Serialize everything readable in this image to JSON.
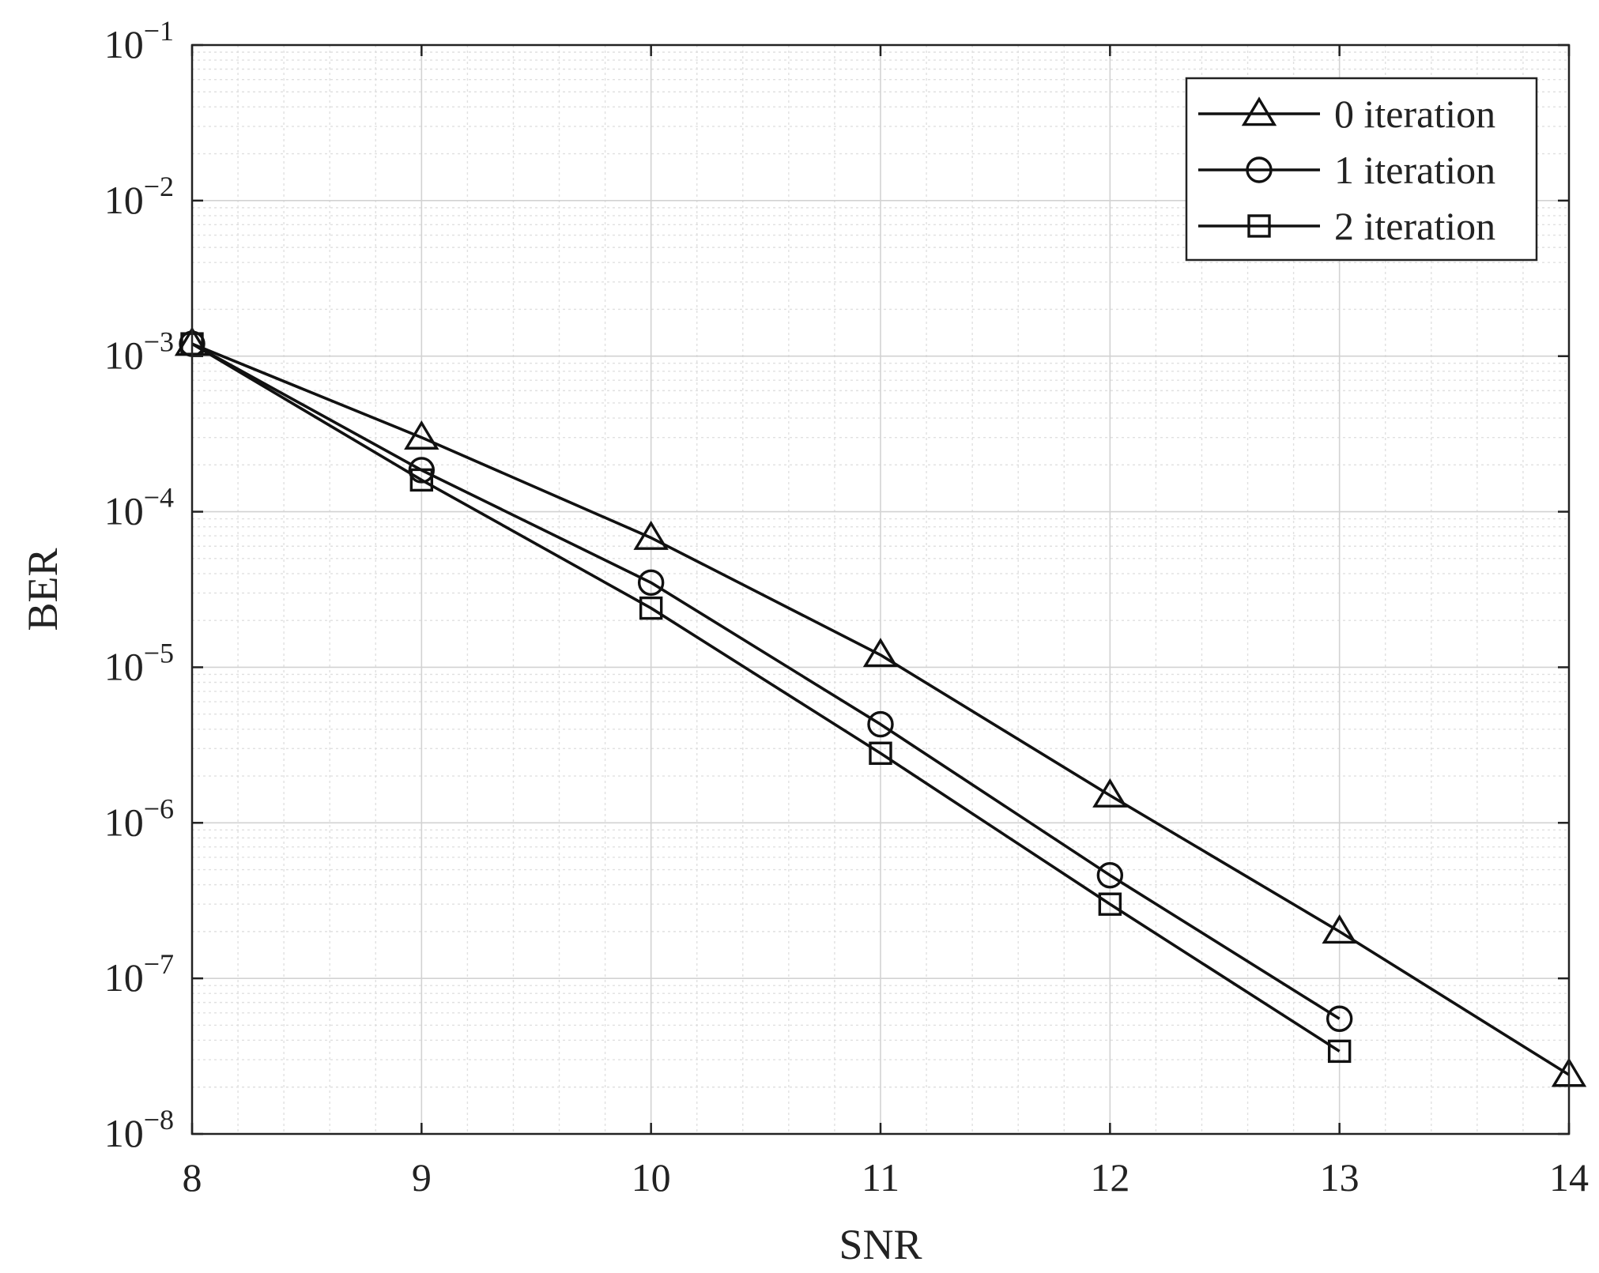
{
  "chart_data": {
    "type": "line",
    "title": "",
    "xlabel": "SNR",
    "ylabel": "BER",
    "xlim": [
      8,
      14
    ],
    "ylim": [
      1e-08,
      0.1
    ],
    "yscale": "log",
    "grid": true,
    "minor_grid": true,
    "legend_position": "top-right",
    "x_ticks": [
      {
        "value": 8,
        "label": "8"
      },
      {
        "value": 9,
        "label": "9"
      },
      {
        "value": 10,
        "label": "10"
      },
      {
        "value": 11,
        "label": "11"
      },
      {
        "value": 12,
        "label": "12"
      },
      {
        "value": 13,
        "label": "13"
      },
      {
        "value": 14,
        "label": "14"
      }
    ],
    "y_ticks": [
      {
        "value": 0.1,
        "base": "10",
        "exp": "−1"
      },
      {
        "value": 0.01,
        "base": "10",
        "exp": "−2"
      },
      {
        "value": 0.001,
        "base": "10",
        "exp": "−3"
      },
      {
        "value": 0.0001,
        "base": "10",
        "exp": "−4"
      },
      {
        "value": 1e-05,
        "base": "10",
        "exp": "−5"
      },
      {
        "value": 1e-06,
        "base": "10",
        "exp": "−6"
      },
      {
        "value": 1e-07,
        "base": "10",
        "exp": "−7"
      },
      {
        "value": 1e-08,
        "base": "10",
        "exp": "−8"
      }
    ],
    "series": [
      {
        "name": "0 iteration",
        "marker": "triangle",
        "color": "#111111",
        "x": [
          8,
          9,
          10,
          11,
          12,
          13,
          14
        ],
        "y": [
          0.0012,
          0.0003,
          6.8e-05,
          1.2e-05,
          1.5e-06,
          2e-07,
          2.4e-08
        ]
      },
      {
        "name": "1 iteration",
        "marker": "circle",
        "color": "#111111",
        "x": [
          8,
          9,
          10,
          11,
          12,
          13
        ],
        "y": [
          0.0012,
          0.000185,
          3.5e-05,
          4.3e-06,
          4.6e-07,
          5.5e-08
        ]
      },
      {
        "name": "2 iteration",
        "marker": "square",
        "color": "#111111",
        "x": [
          8,
          9,
          10,
          11,
          12,
          13
        ],
        "y": [
          0.0012,
          0.00016,
          2.4e-05,
          2.8e-06,
          3e-07,
          3.4e-08
        ]
      }
    ]
  },
  "colors": {
    "axis": "#222222",
    "grid_major": "#d2d2d2",
    "grid_minor": "#e0e0e0",
    "series": "#111111"
  }
}
